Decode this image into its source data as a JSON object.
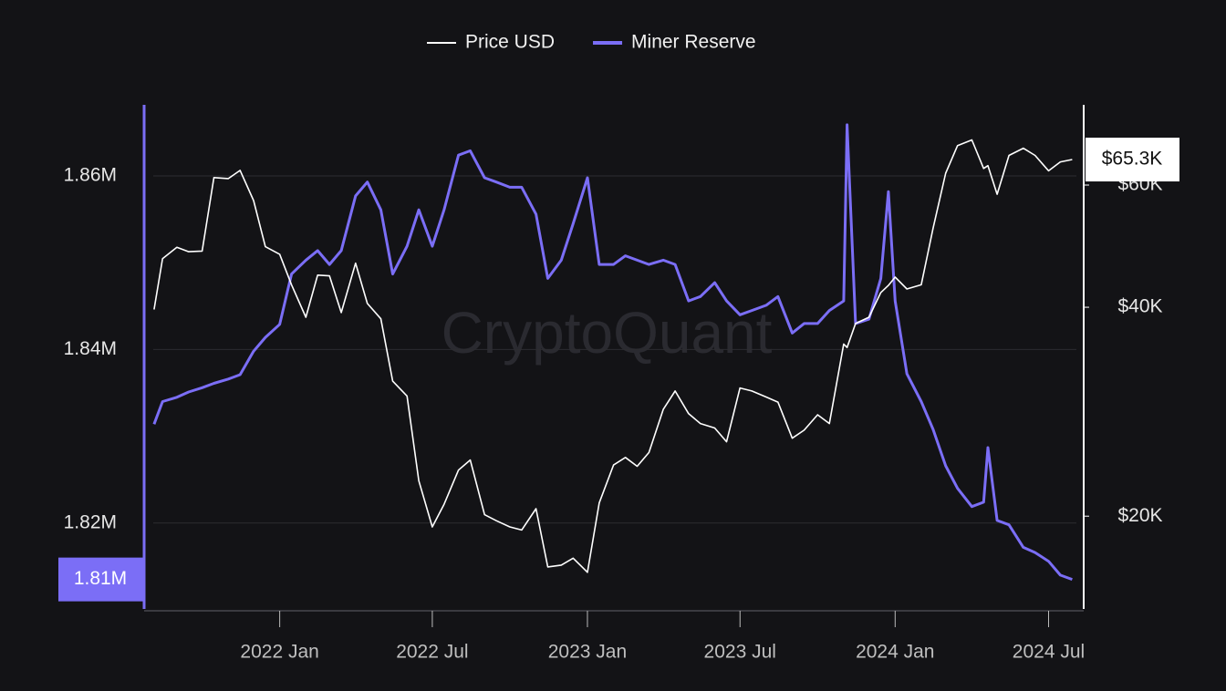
{
  "chart_data": {
    "type": "line",
    "watermark": "CryptoQuant",
    "x": [
      "2021-08-05",
      "2021-08-15",
      "2021-09-01",
      "2021-09-15",
      "2021-10-01",
      "2021-10-15",
      "2021-11-01",
      "2021-11-15",
      "2021-12-01",
      "2021-12-15",
      "2022-01-01",
      "2022-01-15",
      "2022-02-01",
      "2022-02-15",
      "2022-03-01",
      "2022-03-15",
      "2022-04-01",
      "2022-04-15",
      "2022-05-01",
      "2022-05-15",
      "2022-06-01",
      "2022-06-15",
      "2022-07-01",
      "2022-07-15",
      "2022-08-01",
      "2022-08-15",
      "2022-09-01",
      "2022-09-15",
      "2022-10-01",
      "2022-10-15",
      "2022-11-01",
      "2022-11-15",
      "2022-12-01",
      "2022-12-15",
      "2023-01-01",
      "2023-01-15",
      "2023-02-01",
      "2023-02-15",
      "2023-03-01",
      "2023-03-15",
      "2023-04-01",
      "2023-04-15",
      "2023-05-01",
      "2023-05-15",
      "2023-06-01",
      "2023-06-15",
      "2023-07-01",
      "2023-07-15",
      "2023-08-01",
      "2023-08-15",
      "2023-09-01",
      "2023-09-15",
      "2023-10-01",
      "2023-10-15",
      "2023-11-01",
      "2023-11-05",
      "2023-11-15",
      "2023-12-01",
      "2023-12-15",
      "2023-12-24",
      "2024-01-01",
      "2024-01-15",
      "2024-02-01",
      "2024-02-15",
      "2024-03-01",
      "2024-03-15",
      "2024-04-01",
      "2024-04-15",
      "2024-04-20",
      "2024-05-01",
      "2024-05-15",
      "2024-06-01",
      "2024-06-15",
      "2024-07-01",
      "2024-07-15",
      "2024-07-29"
    ],
    "series": [
      {
        "name": "Price USD",
        "color": "#ffffff",
        "axis": "y2",
        "values": [
          39700,
          47000,
          48800,
          48100,
          48200,
          61500,
          61300,
          63000,
          57000,
          48900,
          47700,
          43100,
          38700,
          44500,
          44400,
          39300,
          46300,
          40500,
          38500,
          31300,
          29800,
          22500,
          19300,
          20800,
          23300,
          24100,
          20100,
          19700,
          19300,
          19100,
          20500,
          16900,
          17000,
          17400,
          16600,
          20900,
          23700,
          24300,
          23600,
          24700,
          28500,
          30300,
          28100,
          27200,
          26800,
          25600,
          30600,
          30300,
          29700,
          29200,
          25900,
          26600,
          28000,
          27200,
          35400,
          35000,
          37900,
          38700,
          42000,
          43000,
          44200,
          42500,
          43100,
          52000,
          62400,
          68400,
          69700,
          63400,
          64000,
          58200,
          66200,
          67800,
          66200,
          62900,
          64800,
          65300
        ]
      },
      {
        "name": "Miner Reserve",
        "color": "#7b6ef6",
        "values": [
          1831400,
          1834000,
          1834500,
          1835100,
          1835600,
          1836100,
          1836600,
          1837100,
          1839800,
          1841400,
          1842900,
          1848700,
          1850300,
          1851400,
          1849800,
          1851400,
          1857700,
          1859300,
          1856100,
          1848700,
          1851900,
          1856100,
          1851900,
          1856100,
          1862400,
          1862900,
          1859800,
          1859300,
          1858700,
          1858700,
          1855600,
          1848200,
          1850300,
          1854500,
          1859800,
          1849800,
          1849800,
          1850800,
          1850300,
          1849800,
          1850300,
          1849800,
          1845600,
          1846100,
          1847700,
          1845600,
          1844000,
          1844500,
          1845100,
          1846100,
          1841900,
          1843000,
          1843000,
          1844500,
          1845600,
          1865900,
          1843000,
          1843500,
          1848200,
          1858200,
          1845600,
          1837200,
          1834000,
          1830800,
          1826600,
          1824000,
          1821900,
          1822400,
          1828700,
          1820300,
          1819800,
          1817200,
          1816600,
          1815600,
          1814000,
          1813500
        ]
      }
    ],
    "xlim": [
      "2021-08-04",
      "2024-08-03"
    ],
    "xticks": [
      {
        "value": "2022-01-01",
        "label": "2022 Jan"
      },
      {
        "value": "2022-07-01",
        "label": "2022 Jul"
      },
      {
        "value": "2023-01-01",
        "label": "2023 Jan"
      },
      {
        "value": "2023-07-01",
        "label": "2023 Jul"
      },
      {
        "value": "2024-01-01",
        "label": "2024 Jan"
      },
      {
        "value": "2024-07-01",
        "label": "2024 Jul"
      }
    ],
    "ylim": [
      1810100,
      1868200
    ],
    "yticks": [
      {
        "value": 1820000,
        "label": "1.82M"
      },
      {
        "value": 1840000,
        "label": "1.84M"
      },
      {
        "value": 1860000,
        "label": "1.86M"
      }
    ],
    "y2lim": [
      14700,
      78300
    ],
    "y2log": true,
    "y2ticks": [
      {
        "value": 20000,
        "label": "$20K"
      },
      {
        "value": 40000,
        "label": "$40K"
      },
      {
        "value": 60000,
        "label": "$60K"
      }
    ],
    "y_badge": {
      "value": 1813500,
      "label": "1.81M"
    },
    "y2_badge": {
      "value": 65300,
      "label": "$65.3K"
    },
    "grid": true,
    "legend": "top"
  }
}
